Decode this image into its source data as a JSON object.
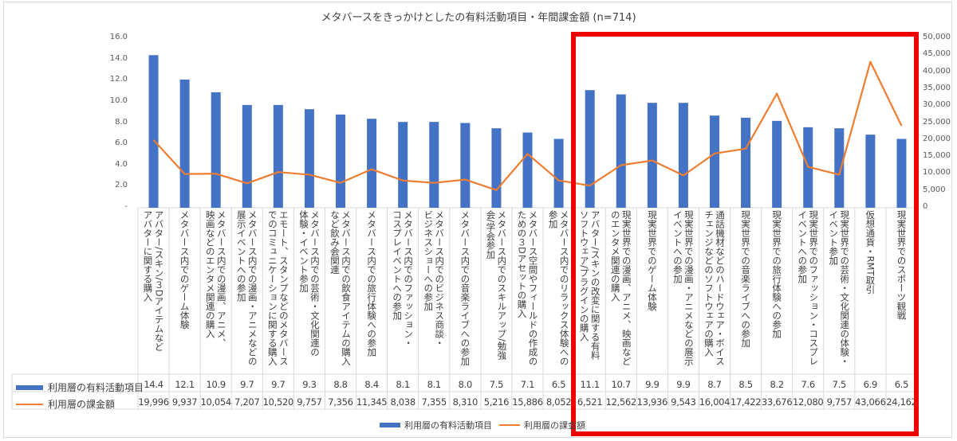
{
  "chart_data": {
    "type": "bar+line",
    "title": "メタバースをきっかけとしたの有料活動項目・年間課金額 (n=714)",
    "categories": [
      "アバター/スキン/３Dアイテムなど\nアバターに関する購入",
      "メタバース内でのゲーム体験",
      "メタバース内での漫画、アニメ、\n映画などのエンタメ関連の購入",
      "メタバース内での漫画・アニメなどの\n展示イベントへの参加",
      "エモート、スタンプなどのメタバース\nでのコミュニケーションに関する購入",
      "メタバース内での芸術・文化関連の\n体験・イベント参加",
      "メタバース内での飲食アイテムの購入\nなど飲み会関連",
      "メタバース内での旅行体験への参加",
      "メタバース内でのファッション・\nコスプレイベントへの参加",
      "メタバース内でのビジネス商談・\nビジネスショーへの参加",
      "メタバース内での音楽ライブへの参加",
      "メタバース内でのスキルアップ/勉強\n会/学会参加",
      "メタバース空間やフィールドの作成の\nための３Dアセットの購入",
      "メタバース内でのリラックス体験への\n参加",
      "アバター/スキンの改変に関する有料\nソフトウェア/プラグインの購入",
      "現実世界での漫画、アニメ、映画など\nのエンタメ関連の購入",
      "現実世界でのゲーム体験",
      "現実世界での漫画・アニメなどの展示\nイベントへの参加",
      "通話機材などのハードウェア・ボイス\nチェンジなどのソフトウェアの購入",
      "現実世界での音楽ライブへの参加",
      "現実世界での旅行体験への参加",
      "現実世界でのファッション・コスプレ\nイベントへの参加",
      "現実世界での芸術・文化関連の体験・\nイベント参加",
      "仮想通貨・RMT取引",
      "現実世界でのスポーツ観戦"
    ],
    "series": [
      {
        "name": "利用層の有料活動項目",
        "type": "bar",
        "axis": "left",
        "color": "#4472c4",
        "values": [
          14.4,
          12.1,
          10.9,
          9.7,
          9.7,
          9.3,
          8.8,
          8.4,
          8.1,
          8.1,
          8.0,
          7.5,
          7.1,
          6.5,
          11.1,
          10.7,
          9.9,
          9.9,
          8.7,
          8.5,
          8.2,
          7.6,
          7.5,
          6.9,
          6.5
        ],
        "labels": [
          "14.4",
          "12.1",
          "10.9",
          "9.7",
          "9.7",
          "9.3",
          "8.8",
          "8.4",
          "8.1",
          "8.1",
          "8.0",
          "7.5",
          "7.1",
          "6.5",
          "11.1",
          "10.7",
          "9.9",
          "9.9",
          "8.7",
          "8.5",
          "8.2",
          "7.6",
          "7.5",
          "6.9",
          "6.5"
        ]
      },
      {
        "name": "利用層の課金額",
        "type": "line",
        "axis": "right",
        "color": "#ed7d31",
        "values": [
          19996,
          9937,
          10054,
          7207,
          10520,
          9757,
          7356,
          11345,
          8038,
          7355,
          8310,
          5216,
          15886,
          8052,
          6521,
          12562,
          13936,
          9543,
          16004,
          17422,
          33676,
          12080,
          9757,
          43066,
          24162
        ],
        "labels": [
          "19,996",
          "9,937",
          "10,054",
          "7,207",
          "10,520",
          "9,757",
          "7,356",
          "11,345",
          "8,038",
          "7,355",
          "8,310",
          "5,216",
          "15,886",
          "8,052",
          "6,521",
          "12,562",
          "13,936",
          "9,543",
          "16,004",
          "17,422",
          "33,676",
          "12,080",
          "9,757",
          "43,066",
          "24,162"
        ]
      }
    ],
    "ylim_left": [
      0,
      16
    ],
    "yticks_left": [
      "-",
      "2.0",
      "4.0",
      "6.0",
      "8.0",
      "10.0",
      "12.0",
      "14.0",
      "16.0"
    ],
    "ylim_right": [
      0,
      50000
    ],
    "yticks_right": [
      "0",
      "5,000",
      "10,000",
      "15,000",
      "20,000",
      "25,000",
      "30,000",
      "35,000",
      "40,000",
      "45,000",
      "50,000"
    ],
    "legend": "bottom",
    "highlight": {
      "from_index": 14,
      "to_index": 24,
      "color": "#ee0000"
    }
  }
}
